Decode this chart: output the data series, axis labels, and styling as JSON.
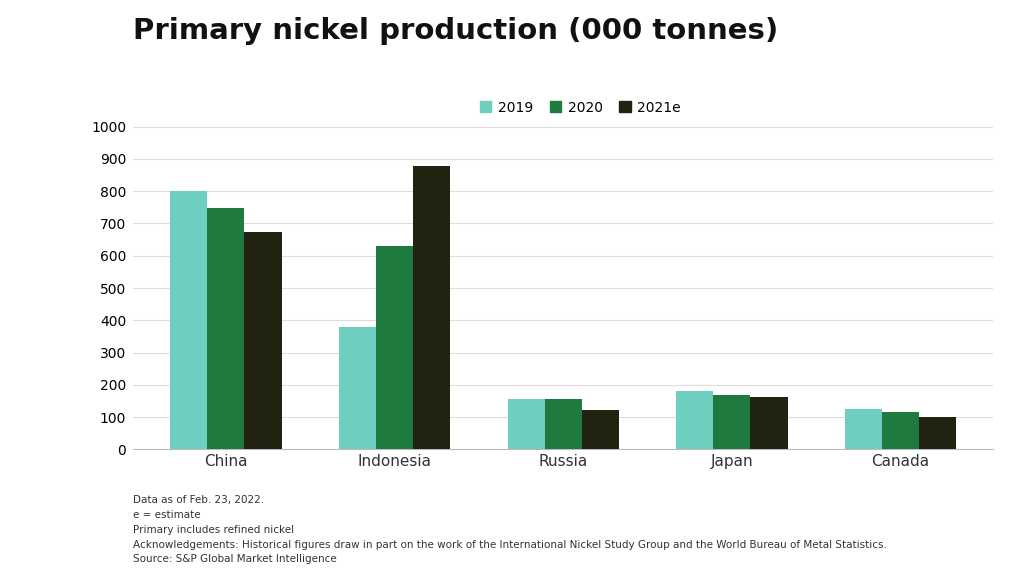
{
  "title": "Primary nickel production (000 tonnes)",
  "categories": [
    "China",
    "Indonesia",
    "Russia",
    "Japan",
    "Canada"
  ],
  "series": {
    "2019": [
      800,
      380,
      155,
      182,
      125
    ],
    "2020": [
      748,
      630,
      155,
      168,
      115
    ],
    "2021e": [
      675,
      878,
      122,
      163,
      100
    ]
  },
  "colors": {
    "2019": "#6ECFC0",
    "2020": "#1E7A3E",
    "2021e": "#222210"
  },
  "legend_labels": [
    "2019",
    "2020",
    "2021e"
  ],
  "ylim": [
    0,
    1000
  ],
  "yticks": [
    0,
    100,
    200,
    300,
    400,
    500,
    600,
    700,
    800,
    900,
    1000
  ],
  "bar_width": 0.22,
  "background_color": "#FFFFFF",
  "footnotes": [
    "Data as of Feb. 23, 2022.",
    "e = estimate",
    "Primary includes refined nickel",
    "Acknowledgements: Historical figures draw in part on the work of the International Nickel Study Group and the World Bureau of Metal Statistics.",
    "Source: S&P Global Market Intelligence"
  ]
}
